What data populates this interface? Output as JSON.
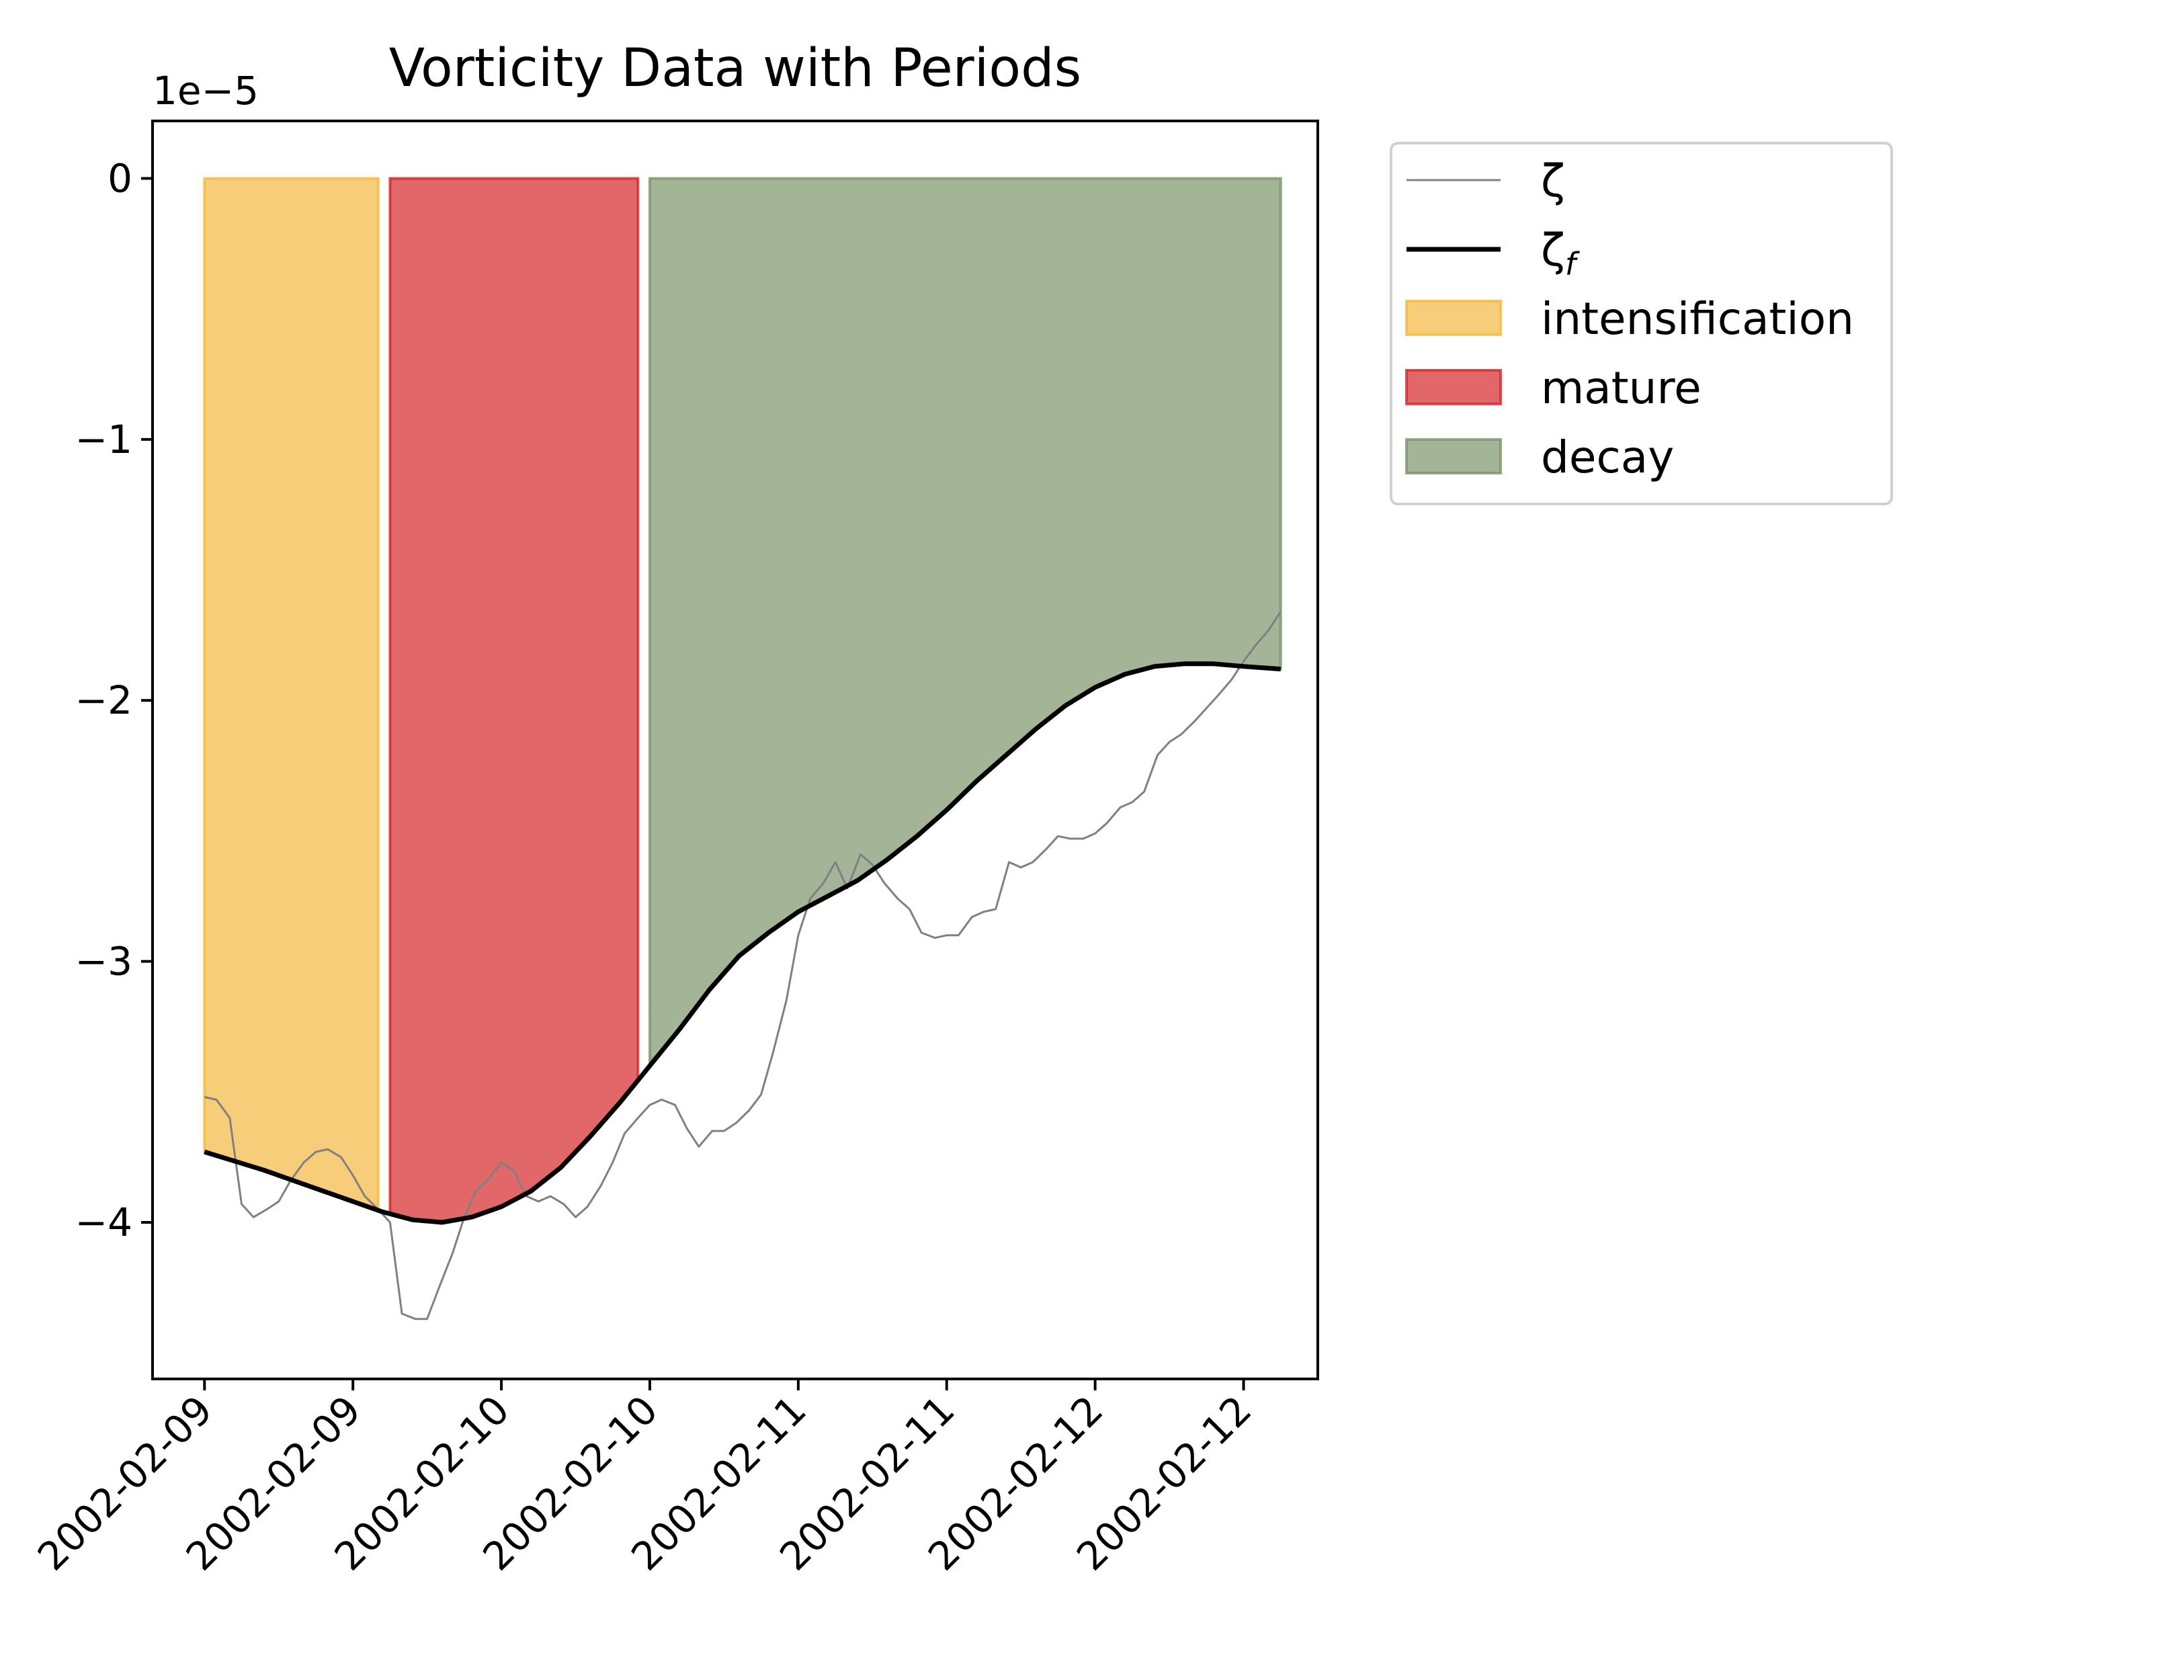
{
  "chart_data": {
    "type": "line",
    "title": "Vorticity Data with Periods",
    "xlabel": "",
    "ylabel": "",
    "y_offset_label": "1e−5",
    "ylim": [
      -4.6,
      0.22
    ],
    "yticks": [
      0,
      -1,
      -2,
      -3,
      -4
    ],
    "ytick_labels": [
      "0",
      "−1",
      "−2",
      "−3",
      "−4"
    ],
    "x_tick_labels": [
      "2002-02-09",
      "2002-02-09",
      "2002-02-10",
      "2002-02-10",
      "2002-02-11",
      "2002-02-11",
      "2002-02-12",
      "2002-02-12"
    ],
    "legend_position": "outside upper right",
    "series": [
      {
        "name": "ζ",
        "color": "#808080",
        "points": [
          [
            0.0,
            -3.52
          ],
          [
            0.08,
            -3.53
          ],
          [
            0.17,
            -3.6
          ],
          [
            0.25,
            -3.93
          ],
          [
            0.33,
            -3.98
          ],
          [
            0.42,
            -3.95
          ],
          [
            0.5,
            -3.92
          ],
          [
            0.58,
            -3.84
          ],
          [
            0.67,
            -3.77
          ],
          [
            0.75,
            -3.73
          ],
          [
            0.83,
            -3.72
          ],
          [
            0.92,
            -3.75
          ],
          [
            1.0,
            -3.82
          ],
          [
            1.08,
            -3.9
          ],
          [
            1.17,
            -3.95
          ],
          [
            1.25,
            -4.0
          ],
          [
            1.33,
            -4.35
          ],
          [
            1.42,
            -4.37
          ],
          [
            1.5,
            -4.37
          ],
          [
            1.58,
            -4.25
          ],
          [
            1.67,
            -4.12
          ],
          [
            1.75,
            -3.98
          ],
          [
            1.83,
            -3.88
          ],
          [
            1.92,
            -3.83
          ],
          [
            2.0,
            -3.77
          ],
          [
            2.08,
            -3.8
          ],
          [
            2.17,
            -3.9
          ],
          [
            2.25,
            -3.92
          ],
          [
            2.33,
            -3.9
          ],
          [
            2.42,
            -3.93
          ],
          [
            2.5,
            -3.98
          ],
          [
            2.58,
            -3.94
          ],
          [
            2.67,
            -3.86
          ],
          [
            2.75,
            -3.77
          ],
          [
            2.83,
            -3.66
          ],
          [
            2.92,
            -3.6
          ],
          [
            3.0,
            -3.55
          ],
          [
            3.08,
            -3.53
          ],
          [
            3.17,
            -3.55
          ],
          [
            3.25,
            -3.64
          ],
          [
            3.33,
            -3.71
          ],
          [
            3.42,
            -3.65
          ],
          [
            3.5,
            -3.65
          ],
          [
            3.58,
            -3.62
          ],
          [
            3.67,
            -3.57
          ],
          [
            3.75,
            -3.51
          ],
          [
            3.83,
            -3.35
          ],
          [
            3.92,
            -3.15
          ],
          [
            4.0,
            -2.9
          ],
          [
            4.08,
            -2.76
          ],
          [
            4.17,
            -2.7
          ],
          [
            4.25,
            -2.62
          ],
          [
            4.33,
            -2.72
          ],
          [
            4.42,
            -2.59
          ],
          [
            4.5,
            -2.63
          ],
          [
            4.58,
            -2.7
          ],
          [
            4.67,
            -2.76
          ],
          [
            4.75,
            -2.8
          ],
          [
            4.83,
            -2.89
          ],
          [
            4.92,
            -2.91
          ],
          [
            5.0,
            -2.9
          ],
          [
            5.08,
            -2.9
          ],
          [
            5.17,
            -2.83
          ],
          [
            5.25,
            -2.81
          ],
          [
            5.33,
            -2.8
          ],
          [
            5.42,
            -2.62
          ],
          [
            5.5,
            -2.64
          ],
          [
            5.58,
            -2.62
          ],
          [
            5.67,
            -2.57
          ],
          [
            5.75,
            -2.52
          ],
          [
            5.83,
            -2.53
          ],
          [
            5.92,
            -2.53
          ],
          [
            6.0,
            -2.51
          ],
          [
            6.08,
            -2.47
          ],
          [
            6.17,
            -2.41
          ],
          [
            6.25,
            -2.39
          ],
          [
            6.33,
            -2.35
          ],
          [
            6.42,
            -2.21
          ],
          [
            6.5,
            -2.16
          ],
          [
            6.58,
            -2.13
          ],
          [
            6.67,
            -2.08
          ],
          [
            6.75,
            -2.03
          ],
          [
            6.83,
            -1.98
          ],
          [
            6.92,
            -1.92
          ],
          [
            7.0,
            -1.85
          ],
          [
            7.08,
            -1.79
          ],
          [
            7.17,
            -1.73
          ],
          [
            7.25,
            -1.66
          ]
        ]
      },
      {
        "name": "ζ_f",
        "color": "#000000",
        "points": [
          [
            0.0,
            -3.73
          ],
          [
            0.4,
            -3.8
          ],
          [
            0.8,
            -3.88
          ],
          [
            1.0,
            -3.92
          ],
          [
            1.2,
            -3.96
          ],
          [
            1.4,
            -3.99
          ],
          [
            1.6,
            -4.0
          ],
          [
            1.8,
            -3.98
          ],
          [
            2.0,
            -3.94
          ],
          [
            2.2,
            -3.88
          ],
          [
            2.4,
            -3.79
          ],
          [
            2.6,
            -3.67
          ],
          [
            2.8,
            -3.54
          ],
          [
            3.0,
            -3.4
          ],
          [
            3.2,
            -3.26
          ],
          [
            3.4,
            -3.11
          ],
          [
            3.6,
            -2.98
          ],
          [
            3.8,
            -2.89
          ],
          [
            4.0,
            -2.81
          ],
          [
            4.2,
            -2.75
          ],
          [
            4.4,
            -2.69
          ],
          [
            4.6,
            -2.61
          ],
          [
            4.8,
            -2.52
          ],
          [
            5.0,
            -2.42
          ],
          [
            5.2,
            -2.31
          ],
          [
            5.4,
            -2.21
          ],
          [
            5.6,
            -2.11
          ],
          [
            5.8,
            -2.02
          ],
          [
            6.0,
            -1.95
          ],
          [
            6.2,
            -1.9
          ],
          [
            6.4,
            -1.87
          ],
          [
            6.6,
            -1.86
          ],
          [
            6.8,
            -1.86
          ],
          [
            7.0,
            -1.87
          ],
          [
            7.25,
            -1.88
          ]
        ]
      }
    ],
    "periods": [
      {
        "name": "intensification",
        "color": "#f5b841",
        "x_start": 0.0,
        "x_end": 1.17
      },
      {
        "name": "mature",
        "color": "#d62728",
        "x_start": 1.25,
        "x_end": 2.92
      },
      {
        "name": "decay",
        "color": "#7c9569",
        "x_start": 3.0,
        "x_end": 7.25
      }
    ]
  }
}
